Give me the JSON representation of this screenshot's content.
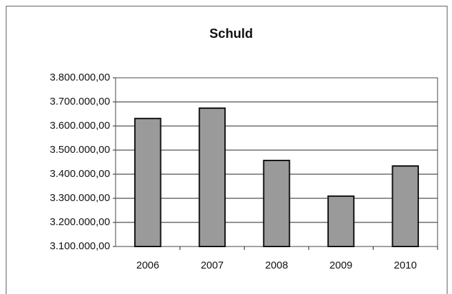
{
  "chart_data": {
    "type": "bar",
    "title": "Schuld",
    "categories": [
      "2006",
      "2007",
      "2008",
      "2009",
      "2010"
    ],
    "values": [
      3631000,
      3674000,
      3457000,
      3309000,
      3434000
    ],
    "color": "#9a9a9a",
    "ylim": [
      3100000,
      3800000
    ],
    "yticks": [
      {
        "value": 3100000,
        "label": "3.100.000,00"
      },
      {
        "value": 3200000,
        "label": "3.200.000,00"
      },
      {
        "value": 3300000,
        "label": "3.300.000,00"
      },
      {
        "value": 3400000,
        "label": "3.400.000,00"
      },
      {
        "value": 3500000,
        "label": "3.500.000,00"
      },
      {
        "value": 3600000,
        "label": "3.600.000,00"
      },
      {
        "value": 3700000,
        "label": "3.700.000,00"
      },
      {
        "value": 3800000,
        "label": "3.800.000,00"
      }
    ],
    "grid": true
  }
}
